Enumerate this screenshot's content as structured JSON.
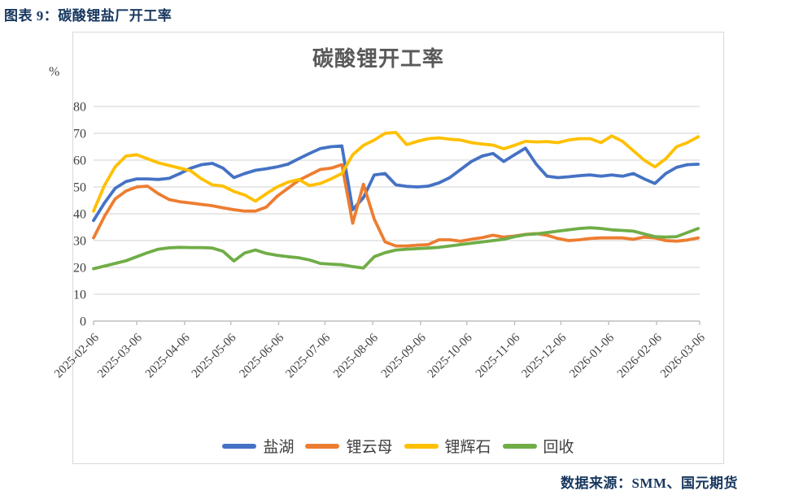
{
  "header": {
    "title": "图表 9：碳酸锂盐厂开工率"
  },
  "footer": {
    "source": "数据来源：SMM、国元期货"
  },
  "chart": {
    "title": "碳酸锂开工率",
    "unit_label": "%"
  },
  "colors": {
    "grid": "#D9D9D9",
    "axis": "#BFBFBF",
    "text": "#404040",
    "accent": "#17375E"
  },
  "chart_data": {
    "type": "line",
    "title": "碳酸锂开工率",
    "xlabel": "",
    "ylabel": "%",
    "ylim": [
      0,
      80
    ],
    "ytick_step": 10,
    "grid": "horizontal",
    "legend_position": "bottom",
    "x_start_date": "2025-02-06",
    "x_step_days": 7,
    "xtick_labels": [
      "2025-02-06",
      "2025-03-06",
      "2025-04-06",
      "2025-05-06",
      "2025-06-06",
      "2025-07-06",
      "2025-08-06",
      "2025-09-06",
      "2025-10-06",
      "2025-11-06",
      "2025-12-06",
      "2026-01-06",
      "2026-02-06",
      "2026-03-06"
    ],
    "series": [
      {
        "name": "盐湖",
        "color": "#4472C4",
        "values": [
          37.5,
          44,
          49.5,
          52,
          53,
          53,
          52.8,
          53.2,
          55,
          57,
          58.3,
          58.8,
          57,
          53.5,
          55,
          56.2,
          56.8,
          57.5,
          58.5,
          60.5,
          62.5,
          64.3,
          65,
          65.3,
          41.5,
          46,
          54.5,
          55,
          50.8,
          50.2,
          50,
          50.3,
          51.5,
          53.5,
          56.5,
          59.5,
          61.5,
          62.5,
          59.5,
          62,
          64.5,
          58.5,
          54,
          53.5,
          53.8,
          54.2,
          54.5,
          54,
          54.5,
          54,
          55,
          53,
          51.3,
          55,
          57.3,
          58.3,
          58.5
        ]
      },
      {
        "name": "锂云母",
        "color": "#ED7D31",
        "values": [
          31,
          39,
          45.5,
          48.5,
          50,
          50.3,
          47.5,
          45.3,
          44.5,
          44,
          43.5,
          43,
          42.2,
          41.5,
          41,
          41,
          42.5,
          46.5,
          49.5,
          52.5,
          54.5,
          56.5,
          57,
          58.3,
          36.5,
          51,
          38,
          29.5,
          28,
          28,
          28.3,
          28.5,
          30.3,
          30.3,
          29.8,
          30.5,
          31.1,
          32,
          31.3,
          31.7,
          32.3,
          32.6,
          32,
          30.8,
          30,
          30.3,
          30.8,
          31,
          31,
          31,
          30.5,
          31.3,
          31,
          30,
          29.8,
          30.2,
          31
        ]
      },
      {
        "name": "锂辉石",
        "color": "#FFC000",
        "values": [
          41,
          50.5,
          57.5,
          61.5,
          62,
          60.5,
          59,
          58,
          57,
          56,
          53,
          50.8,
          50.3,
          48.3,
          47,
          44.7,
          47.5,
          50,
          51.8,
          52.8,
          50.5,
          51.3,
          53,
          55,
          62,
          65.5,
          67.5,
          70,
          70.3,
          65.8,
          67,
          68,
          68.3,
          67.8,
          67.5,
          66.5,
          66,
          65.6,
          64.2,
          65.5,
          67,
          66.8,
          66.9,
          66.5,
          67.5,
          68,
          68,
          66.5,
          69,
          67,
          63.5,
          60,
          57.5,
          60.5,
          65,
          66.5,
          68.7
        ]
      },
      {
        "name": "回收",
        "color": "#70AD47",
        "values": [
          19.5,
          20.5,
          21.5,
          22.5,
          24,
          25.5,
          26.8,
          27.3,
          27.5,
          27.4,
          27.4,
          27.2,
          26,
          22.4,
          25.4,
          26.5,
          25.2,
          24.5,
          24,
          23.6,
          22.8,
          21.5,
          21.2,
          21,
          20.3,
          19.8,
          24,
          25.5,
          26.5,
          26.8,
          27,
          27.2,
          27.5,
          28,
          28.5,
          29,
          29.5,
          30,
          30.5,
          31.5,
          32.2,
          32.5,
          33,
          33.5,
          34,
          34.5,
          34.8,
          34.5,
          34,
          33.8,
          33.5,
          32.5,
          31.5,
          31.3,
          31.5,
          33,
          34.5
        ]
      }
    ]
  }
}
